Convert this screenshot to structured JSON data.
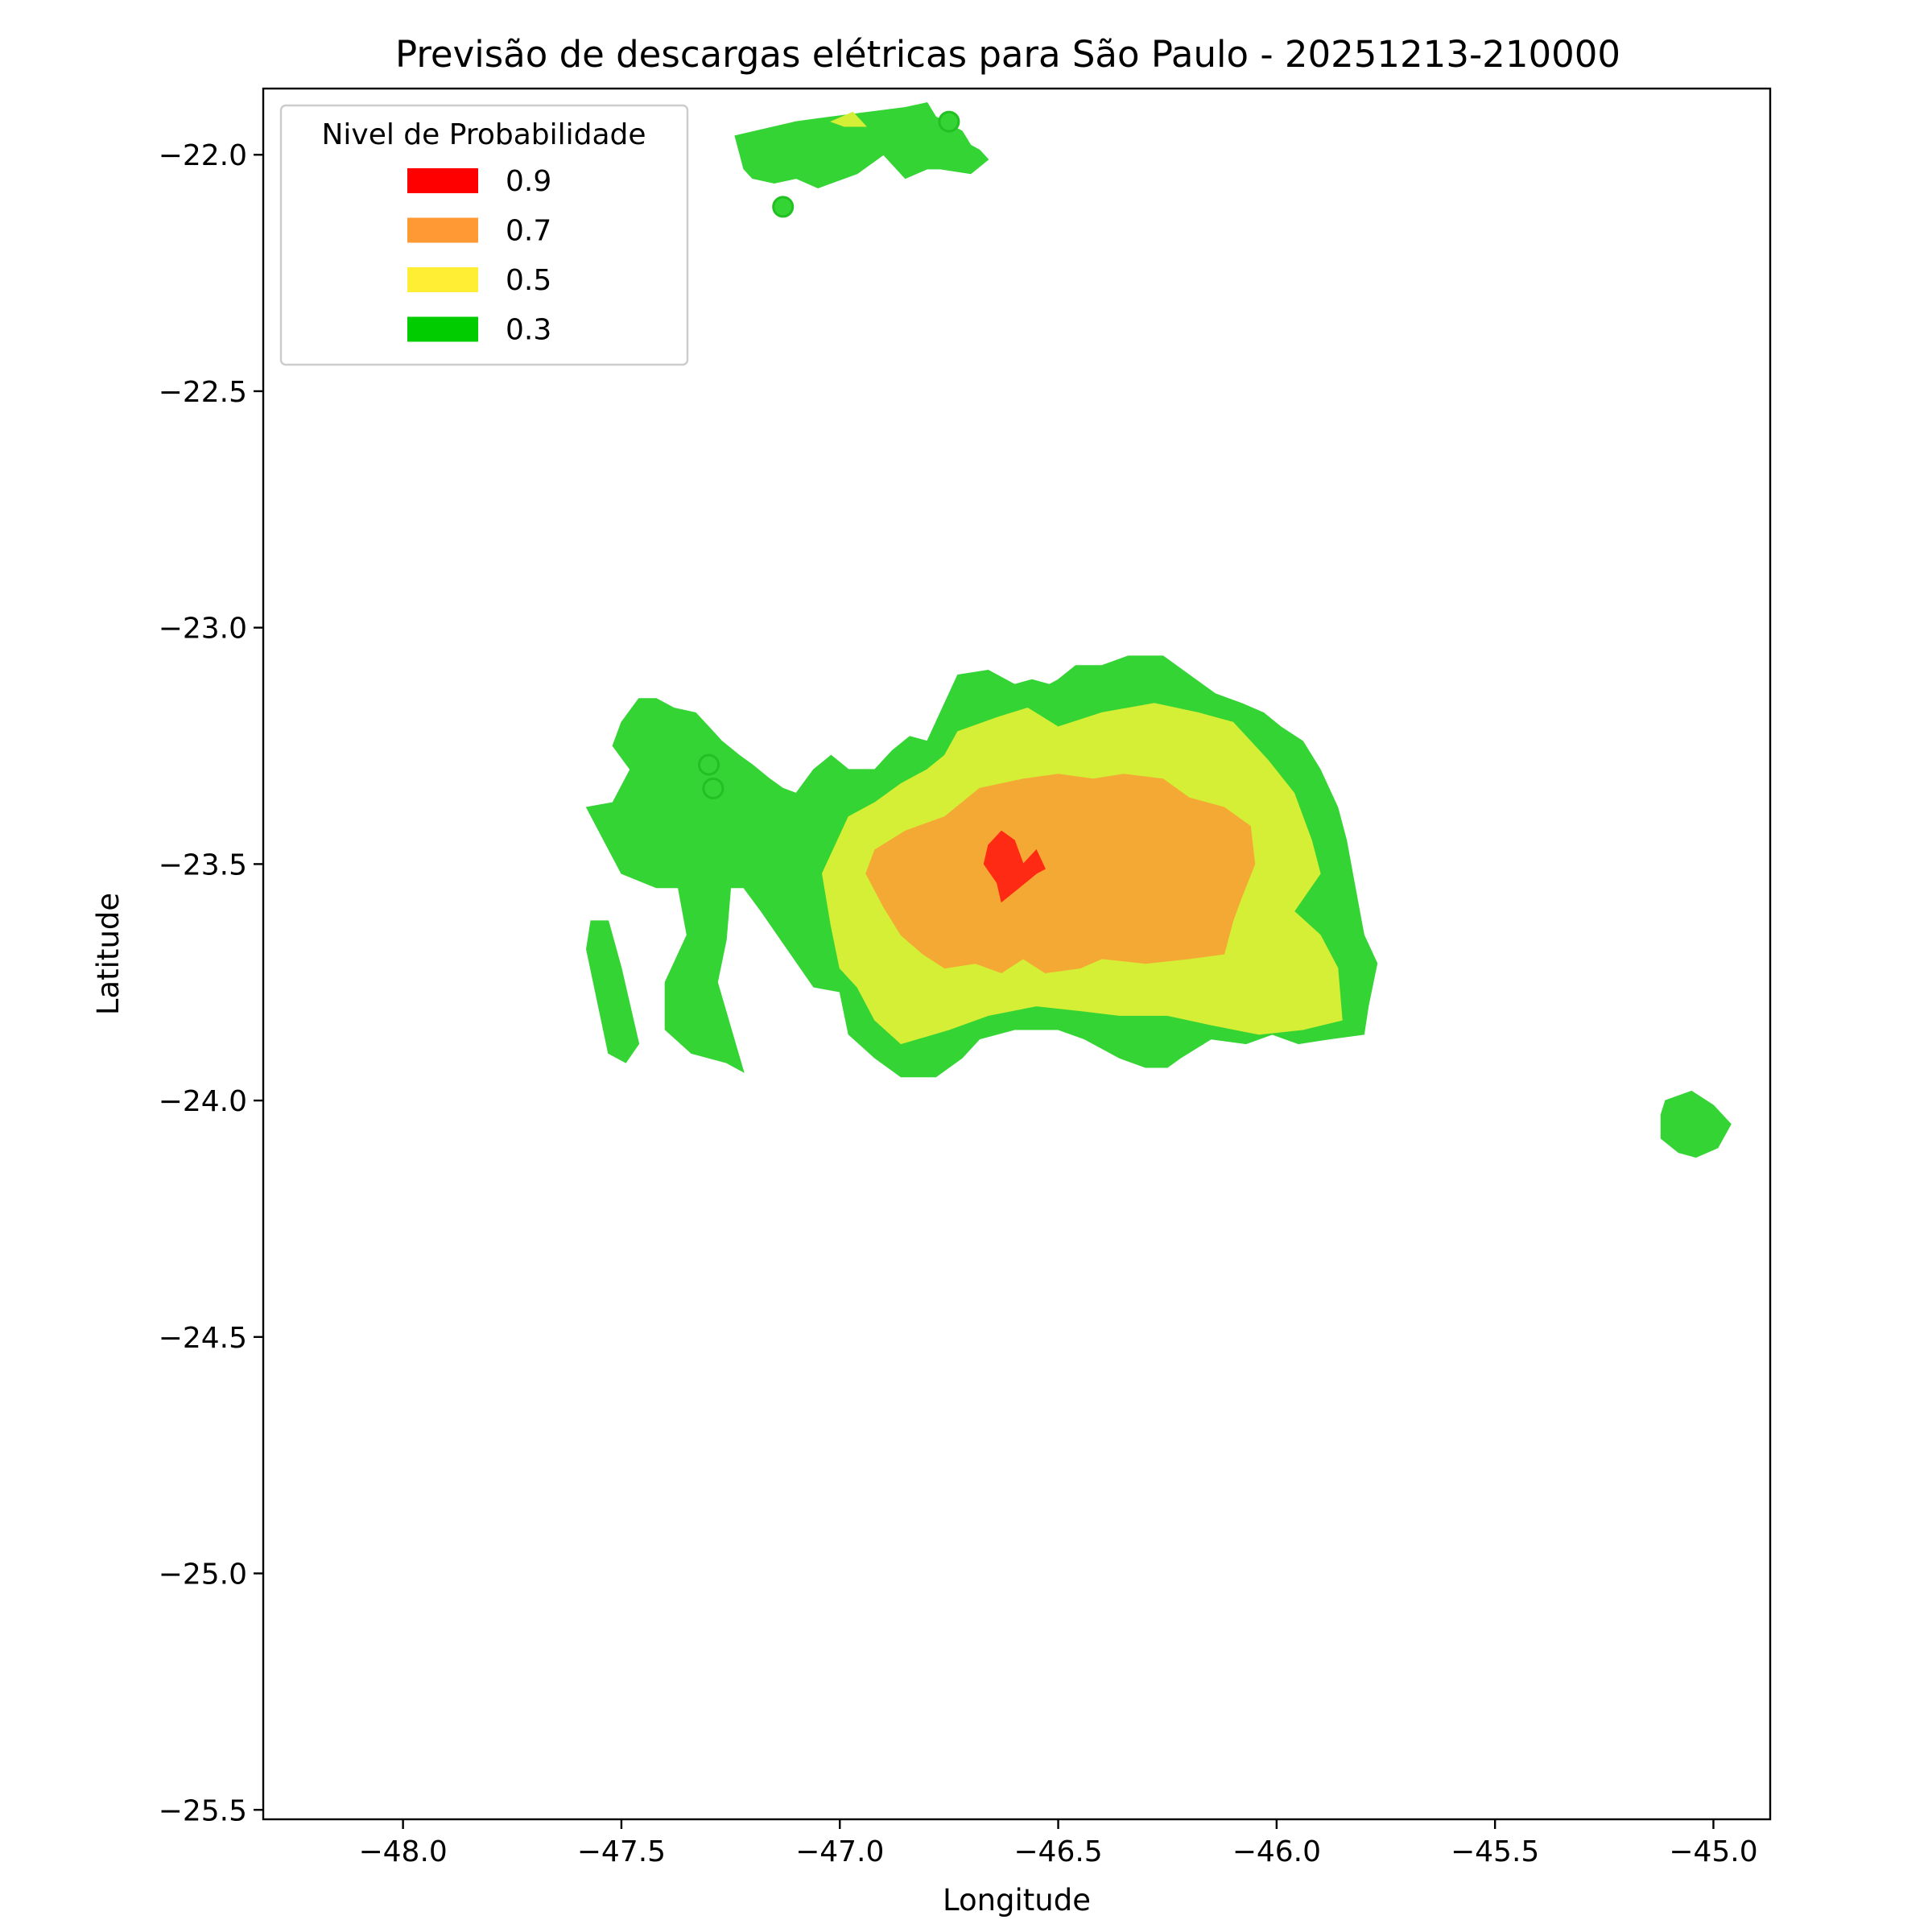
{
  "chart_data": {
    "type": "contour-map",
    "title": "Previsão de descargas elétricas para São Paulo - 20251213-210000",
    "xlabel": "Longitude",
    "ylabel": "Latitude",
    "xlim": [
      -48.32,
      -44.87
    ],
    "ylim": [
      -25.52,
      -21.86
    ],
    "x_ticks": [
      -48.0,
      -47.5,
      -47.0,
      -46.5,
      -46.0,
      -45.5,
      -45.0
    ],
    "x_tick_labels": [
      "−48.0",
      "−47.5",
      "−47.0",
      "−46.5",
      "−46.0",
      "−45.5",
      "−45.0"
    ],
    "y_ticks": [
      -22.0,
      -22.5,
      -23.0,
      -23.5,
      -24.0,
      -24.5,
      -25.0,
      -25.5
    ],
    "y_tick_labels": [
      "−22.0",
      "−22.5",
      "−23.0",
      "−23.5",
      "−24.0",
      "−24.5",
      "−25.0",
      "−25.5"
    ],
    "legend": {
      "title": "Nivel de Probabilidade",
      "placement": "top-left",
      "entries": [
        {
          "label": "0.9",
          "color": "#ff0000"
        },
        {
          "label": "0.7",
          "color": "#ff9933"
        },
        {
          "label": "0.5",
          "color": "#ffee33"
        },
        {
          "label": "0.3",
          "color": "#00cc00"
        }
      ]
    },
    "levels": [
      {
        "level": 0.3,
        "color": "#35d435",
        "regions": [
          {
            "name": "north-patch",
            "points": [
              [
                -47.24,
                -21.96
              ],
              [
                -47.1,
                -21.93
              ],
              [
                -47.02,
                -21.92
              ],
              [
                -46.85,
                -21.9
              ],
              [
                -46.8,
                -21.89
              ],
              [
                -46.78,
                -21.92
              ],
              [
                -46.72,
                -21.95
              ],
              [
                -46.7,
                -21.98
              ],
              [
                -46.68,
                -21.99
              ],
              [
                -46.66,
                -22.01
              ],
              [
                -46.7,
                -22.04
              ],
              [
                -46.77,
                -22.03
              ],
              [
                -46.8,
                -22.03
              ],
              [
                -46.85,
                -22.05
              ],
              [
                -46.9,
                -22.0
              ],
              [
                -46.96,
                -22.04
              ],
              [
                -47.05,
                -22.07
              ],
              [
                -47.1,
                -22.05
              ],
              [
                -47.15,
                -22.06
              ],
              [
                -47.2,
                -22.05
              ],
              [
                -47.22,
                -22.03
              ]
            ]
          },
          {
            "name": "main-storm",
            "points": [
              [
                -47.46,
                -23.15
              ],
              [
                -47.42,
                -23.15
              ],
              [
                -47.38,
                -23.17
              ],
              [
                -47.33,
                -23.18
              ],
              [
                -47.3,
                -23.21
              ],
              [
                -47.27,
                -23.24
              ],
              [
                -47.23,
                -23.27
              ],
              [
                -47.2,
                -23.29
              ],
              [
                -47.16,
                -23.32
              ],
              [
                -47.13,
                -23.34
              ],
              [
                -47.1,
                -23.35
              ],
              [
                -47.06,
                -23.3
              ],
              [
                -47.02,
                -23.27
              ],
              [
                -46.98,
                -23.3
              ],
              [
                -46.92,
                -23.3
              ],
              [
                -46.88,
                -23.26
              ],
              [
                -46.84,
                -23.23
              ],
              [
                -46.8,
                -23.24
              ],
              [
                -46.77,
                -23.18
              ],
              [
                -46.73,
                -23.1
              ],
              [
                -46.66,
                -23.09
              ],
              [
                -46.6,
                -23.12
              ],
              [
                -46.56,
                -23.11
              ],
              [
                -46.52,
                -23.12
              ],
              [
                -46.5,
                -23.11
              ],
              [
                -46.46,
                -23.08
              ],
              [
                -46.4,
                -23.08
              ],
              [
                -46.34,
                -23.06
              ],
              [
                -46.26,
                -23.06
              ],
              [
                -46.2,
                -23.1
              ],
              [
                -46.14,
                -23.14
              ],
              [
                -46.08,
                -23.16
              ],
              [
                -46.03,
                -23.18
              ],
              [
                -45.99,
                -23.21
              ],
              [
                -45.94,
                -23.24
              ],
              [
                -45.9,
                -23.3
              ],
              [
                -45.86,
                -23.38
              ],
              [
                -45.84,
                -23.45
              ],
              [
                -45.82,
                -23.55
              ],
              [
                -45.8,
                -23.65
              ],
              [
                -45.77,
                -23.71
              ],
              [
                -45.79,
                -23.8
              ],
              [
                -45.8,
                -23.86
              ],
              [
                -45.88,
                -23.87
              ],
              [
                -45.95,
                -23.88
              ],
              [
                -46.01,
                -23.86
              ],
              [
                -46.07,
                -23.88
              ],
              [
                -46.15,
                -23.87
              ],
              [
                -46.22,
                -23.91
              ],
              [
                -46.25,
                -23.93
              ],
              [
                -46.3,
                -23.93
              ],
              [
                -46.36,
                -23.91
              ],
              [
                -46.44,
                -23.87
              ],
              [
                -46.5,
                -23.85
              ],
              [
                -46.6,
                -23.85
              ],
              [
                -46.68,
                -23.87
              ],
              [
                -46.72,
                -23.91
              ],
              [
                -46.78,
                -23.95
              ],
              [
                -46.86,
                -23.95
              ],
              [
                -46.92,
                -23.91
              ],
              [
                -46.98,
                -23.86
              ],
              [
                -47.0,
                -23.77
              ],
              [
                -47.06,
                -23.76
              ],
              [
                -47.12,
                -23.68
              ],
              [
                -47.18,
                -23.6
              ],
              [
                -47.22,
                -23.55
              ],
              [
                -47.25,
                -23.55
              ],
              [
                -47.26,
                -23.66
              ],
              [
                -47.28,
                -23.75
              ],
              [
                -47.22,
                -23.94
              ],
              [
                -47.26,
                -23.92
              ],
              [
                -47.34,
                -23.9
              ],
              [
                -47.4,
                -23.85
              ],
              [
                -47.4,
                -23.75
              ],
              [
                -47.35,
                -23.65
              ],
              [
                -47.37,
                -23.55
              ],
              [
                -47.42,
                -23.55
              ],
              [
                -47.5,
                -23.52
              ],
              [
                -47.54,
                -23.45
              ],
              [
                -47.58,
                -23.38
              ],
              [
                -47.52,
                -23.37
              ],
              [
                -47.48,
                -23.3
              ],
              [
                -47.52,
                -23.25
              ],
              [
                -47.5,
                -23.2
              ]
            ]
          },
          {
            "name": "west-strip",
            "points": [
              [
                -47.57,
                -23.62
              ],
              [
                -47.53,
                -23.62
              ],
              [
                -47.5,
                -23.72
              ],
              [
                -47.46,
                -23.88
              ],
              [
                -47.49,
                -23.92
              ],
              [
                -47.53,
                -23.9
              ],
              [
                -47.58,
                -23.68
              ]
            ]
          },
          {
            "name": "southeast-patch",
            "points": [
              [
                -45.11,
                -24.0
              ],
              [
                -45.05,
                -23.98
              ],
              [
                -45.0,
                -24.01
              ],
              [
                -44.96,
                -24.05
              ],
              [
                -44.99,
                -24.1
              ],
              [
                -45.04,
                -24.12
              ],
              [
                -45.08,
                -24.11
              ],
              [
                -45.12,
                -24.08
              ],
              [
                -45.12,
                -24.03
              ]
            ]
          }
        ]
      },
      {
        "level": 0.5,
        "color": "#d4ef35",
        "regions": [
          {
            "name": "main-storm-inner",
            "points": [
              [
                -46.73,
                -23.22
              ],
              [
                -46.64,
                -23.19
              ],
              [
                -46.57,
                -23.17
              ],
              [
                -46.5,
                -23.21
              ],
              [
                -46.4,
                -23.18
              ],
              [
                -46.28,
                -23.16
              ],
              [
                -46.18,
                -23.18
              ],
              [
                -46.1,
                -23.2
              ],
              [
                -46.02,
                -23.28
              ],
              [
                -45.96,
                -23.35
              ],
              [
                -45.92,
                -23.45
              ],
              [
                -45.9,
                -23.52
              ],
              [
                -45.96,
                -23.6
              ],
              [
                -45.9,
                -23.65
              ],
              [
                -45.86,
                -23.72
              ],
              [
                -45.85,
                -23.83
              ],
              [
                -45.94,
                -23.85
              ],
              [
                -46.04,
                -23.86
              ],
              [
                -46.15,
                -23.84
              ],
              [
                -46.25,
                -23.82
              ],
              [
                -46.36,
                -23.82
              ],
              [
                -46.45,
                -23.81
              ],
              [
                -46.55,
                -23.8
              ],
              [
                -46.66,
                -23.82
              ],
              [
                -46.75,
                -23.85
              ],
              [
                -46.86,
                -23.88
              ],
              [
                -46.92,
                -23.83
              ],
              [
                -46.96,
                -23.76
              ],
              [
                -47.0,
                -23.72
              ],
              [
                -47.02,
                -23.63
              ],
              [
                -47.04,
                -23.52
              ],
              [
                -46.98,
                -23.4
              ],
              [
                -46.92,
                -23.37
              ],
              [
                -46.86,
                -23.33
              ],
              [
                -46.8,
                -23.3
              ],
              [
                -46.76,
                -23.27
              ]
            ]
          },
          {
            "name": "north-yellow",
            "points": [
              [
                -47.02,
                -21.93
              ],
              [
                -46.97,
                -21.91
              ],
              [
                -46.94,
                -21.94
              ],
              [
                -46.99,
                -21.94
              ]
            ]
          }
        ]
      },
      {
        "level": 0.7,
        "color": "#f5a935",
        "regions": [
          {
            "name": "main-storm-core",
            "points": [
              [
                -46.68,
                -23.34
              ],
              [
                -46.58,
                -23.32
              ],
              [
                -46.5,
                -23.31
              ],
              [
                -46.42,
                -23.32
              ],
              [
                -46.35,
                -23.31
              ],
              [
                -46.26,
                -23.32
              ],
              [
                -46.2,
                -23.36
              ],
              [
                -46.12,
                -23.38
              ],
              [
                -46.06,
                -23.42
              ],
              [
                -46.05,
                -23.5
              ],
              [
                -46.08,
                -23.57
              ],
              [
                -46.1,
                -23.62
              ],
              [
                -46.12,
                -23.69
              ],
              [
                -46.2,
                -23.7
              ],
              [
                -46.3,
                -23.71
              ],
              [
                -46.4,
                -23.7
              ],
              [
                -46.45,
                -23.72
              ],
              [
                -46.53,
                -23.73
              ],
              [
                -46.58,
                -23.7
              ],
              [
                -46.63,
                -23.73
              ],
              [
                -46.69,
                -23.71
              ],
              [
                -46.76,
                -23.72
              ],
              [
                -46.81,
                -23.69
              ],
              [
                -46.86,
                -23.65
              ],
              [
                -46.9,
                -23.59
              ],
              [
                -46.94,
                -23.52
              ],
              [
                -46.92,
                -23.47
              ],
              [
                -46.85,
                -23.43
              ],
              [
                -46.76,
                -23.4
              ],
              [
                -46.72,
                -23.37
              ]
            ]
          }
        ]
      },
      {
        "level": 0.9,
        "color": "#ff2a14",
        "regions": [
          {
            "name": "storm-peak",
            "points": [
              [
                -46.63,
                -23.43
              ],
              [
                -46.66,
                -23.46
              ],
              [
                -46.67,
                -23.5
              ],
              [
                -46.64,
                -23.54
              ],
              [
                -46.63,
                -23.58
              ],
              [
                -46.59,
                -23.55
              ],
              [
                -46.55,
                -23.52
              ],
              [
                -46.53,
                -23.51
              ],
              [
                -46.55,
                -23.47
              ],
              [
                -46.58,
                -23.5
              ],
              [
                -46.6,
                -23.45
              ]
            ]
          }
        ]
      }
    ],
    "points": [
      {
        "lon": -46.75,
        "lat": -21.93,
        "value": 0.3
      },
      {
        "lon": -47.13,
        "lat": -22.11,
        "value": 0.3
      },
      {
        "lon": -47.3,
        "lat": -23.29,
        "value": 0.3
      },
      {
        "lon": -47.29,
        "lat": -23.34,
        "value": 0.3
      }
    ]
  }
}
